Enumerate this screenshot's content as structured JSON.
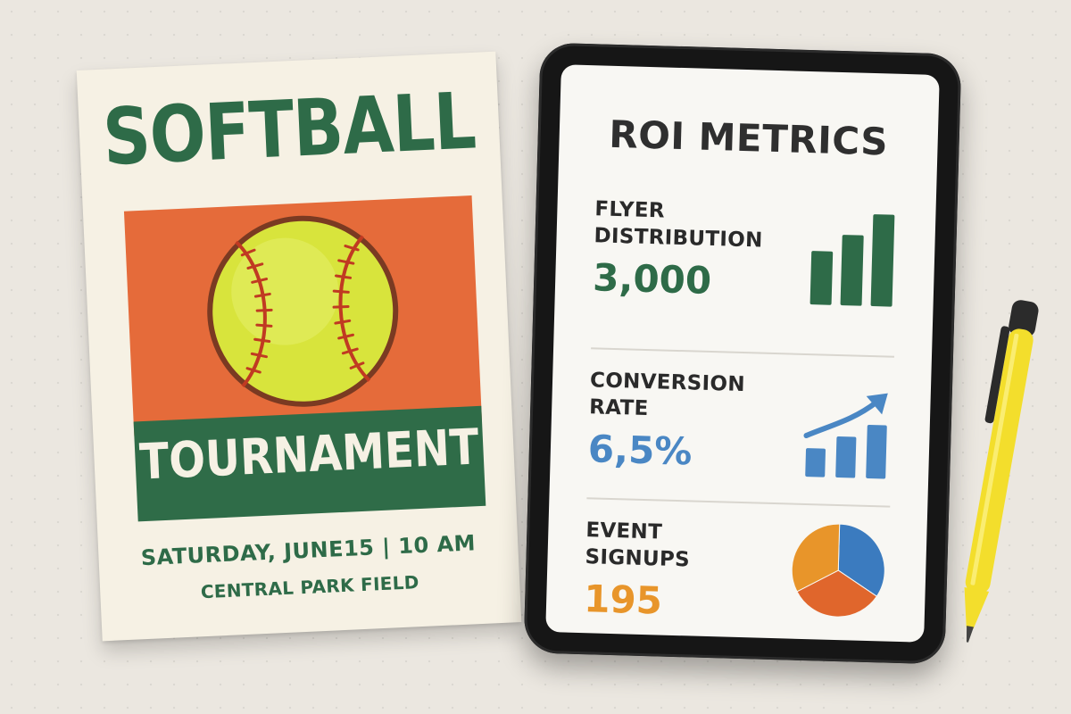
{
  "flyer": {
    "title": "SOFTBALL",
    "subtitle": "TOURNAMENT",
    "date_time": "SATURDAY, JUNE15 | 10 AM",
    "venue": "CENTRAL PARK FIELD",
    "colors": {
      "green": "#2e6b48",
      "orange": "#e56b3a",
      "cream": "#f6f1e4",
      "ball": "#d8e43c",
      "stitch": "#c03a22"
    }
  },
  "tablet": {
    "title": "ROI METRICS",
    "metrics": [
      {
        "label": "FLYER DISTRIBUTION",
        "value": "3,000",
        "color": "#2e6b48",
        "icon": "bar-chart-icon",
        "bars": [
          0.5,
          0.7,
          1.0
        ]
      },
      {
        "label": "CONVERSION RATE",
        "value": "6,5%",
        "color": "#4a87c4",
        "icon": "trend-up-icon",
        "bars": [
          0.4,
          0.6,
          0.8
        ]
      },
      {
        "label": "EVENT SIGNUPS",
        "value": "195",
        "color": "#e8952a",
        "icon": "pie-chart-icon",
        "slices": [
          {
            "fraction": 0.34,
            "color": "#3b7bbf"
          },
          {
            "fraction": 0.33,
            "color": "#e0662c"
          },
          {
            "fraction": 0.33,
            "color": "#e8952a"
          }
        ]
      }
    ]
  },
  "pen": {
    "color": "#f3de2c"
  }
}
